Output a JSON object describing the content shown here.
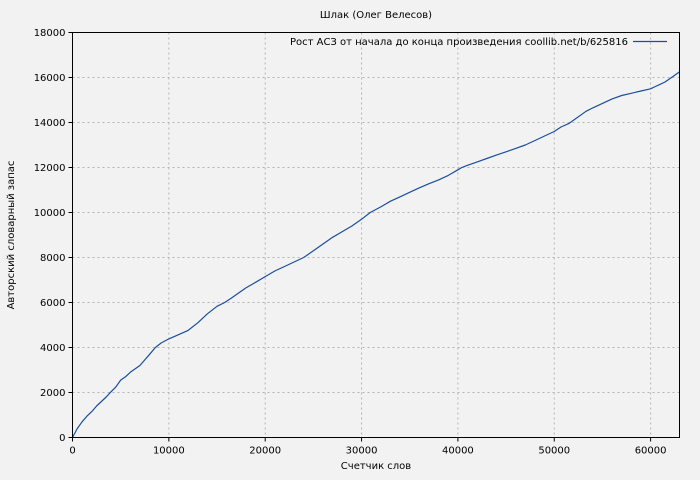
{
  "colors": {
    "background": "#f2f2f2",
    "line": "#1a4e9e",
    "grid": "#b4b4b4",
    "axis": "#000000",
    "text": "#000000"
  },
  "chart_data": {
    "type": "line",
    "title": "Шлак (Олег Велесов)",
    "xlabel": "Счетчик слов",
    "ylabel": "Авторский словарный запас",
    "grid": "on",
    "legend_position": "top-right-inside",
    "xlim": [
      0,
      63000
    ],
    "ylim": [
      0,
      18000
    ],
    "xticks": [
      0,
      10000,
      20000,
      30000,
      40000,
      50000,
      60000
    ],
    "yticks": [
      0,
      2000,
      4000,
      6000,
      8000,
      10000,
      12000,
      14000,
      16000,
      18000
    ],
    "series": [
      {
        "name": "Рост АСЗ от начала до конца произведения coollib.net/b/625816",
        "color": "#1a4e9e",
        "points": [
          [
            0,
            0
          ],
          [
            500,
            400
          ],
          [
            1000,
            700
          ],
          [
            1500,
            950
          ],
          [
            2000,
            1150
          ],
          [
            2500,
            1400
          ],
          [
            3000,
            1600
          ],
          [
            3500,
            1800
          ],
          [
            4000,
            2030
          ],
          [
            4500,
            2250
          ],
          [
            5000,
            2550
          ],
          [
            5500,
            2700
          ],
          [
            6000,
            2900
          ],
          [
            6500,
            3050
          ],
          [
            7000,
            3200
          ],
          [
            7500,
            3450
          ],
          [
            8000,
            3700
          ],
          [
            8600,
            4000
          ],
          [
            9200,
            4200
          ],
          [
            10000,
            4380
          ],
          [
            11000,
            4570
          ],
          [
            12000,
            4760
          ],
          [
            13000,
            5100
          ],
          [
            14000,
            5500
          ],
          [
            15000,
            5830
          ],
          [
            15800,
            6000
          ],
          [
            16500,
            6200
          ],
          [
            17000,
            6350
          ],
          [
            18000,
            6650
          ],
          [
            19000,
            6900
          ],
          [
            20000,
            7150
          ],
          [
            21000,
            7400
          ],
          [
            22000,
            7600
          ],
          [
            23000,
            7800
          ],
          [
            24000,
            8000
          ],
          [
            25000,
            8300
          ],
          [
            26000,
            8600
          ],
          [
            27000,
            8900
          ],
          [
            28000,
            9150
          ],
          [
            29000,
            9400
          ],
          [
            30000,
            9700
          ],
          [
            30900,
            10000
          ],
          [
            32000,
            10250
          ],
          [
            33000,
            10500
          ],
          [
            34000,
            10700
          ],
          [
            35000,
            10900
          ],
          [
            36000,
            11100
          ],
          [
            37000,
            11280
          ],
          [
            38000,
            11450
          ],
          [
            39000,
            11650
          ],
          [
            40000,
            11900
          ],
          [
            40400,
            12000
          ],
          [
            41000,
            12100
          ],
          [
            42000,
            12250
          ],
          [
            43000,
            12400
          ],
          [
            44000,
            12550
          ],
          [
            45000,
            12700
          ],
          [
            46000,
            12850
          ],
          [
            47000,
            13000
          ],
          [
            48000,
            13200
          ],
          [
            49000,
            13400
          ],
          [
            50000,
            13600
          ],
          [
            50700,
            13800
          ],
          [
            51500,
            13950
          ],
          [
            52000,
            14100
          ],
          [
            53300,
            14500
          ],
          [
            54000,
            14650
          ],
          [
            55000,
            14850
          ],
          [
            56000,
            15050
          ],
          [
            57000,
            15200
          ],
          [
            58000,
            15300
          ],
          [
            59000,
            15400
          ],
          [
            60000,
            15500
          ],
          [
            60500,
            15600
          ],
          [
            61000,
            15700
          ],
          [
            61500,
            15800
          ],
          [
            62000,
            15950
          ],
          [
            62500,
            16100
          ],
          [
            63000,
            16250
          ]
        ]
      }
    ]
  }
}
